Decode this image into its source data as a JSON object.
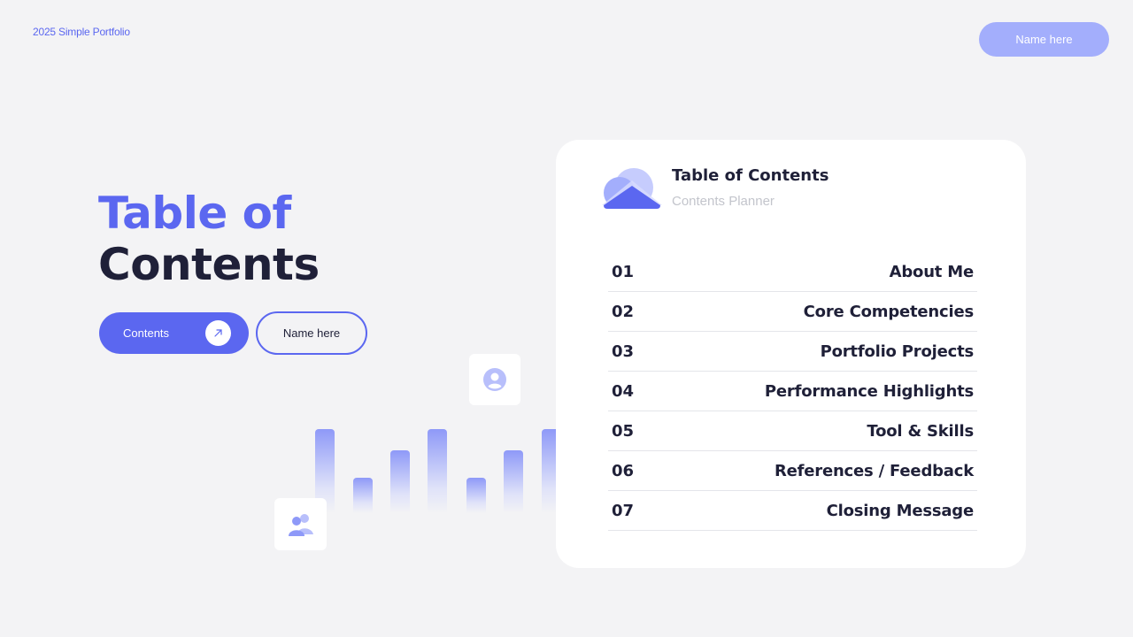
{
  "header": {
    "brand": "2025 Simple  Portfolio",
    "name_pill": "Name here"
  },
  "hero": {
    "title_line1": "Table of",
    "title_line2": "Contents",
    "contents_button": "Contents",
    "name_button": "Name  here"
  },
  "panel": {
    "title": "Table of Contents",
    "subtitle": "Contents Planner",
    "items": [
      {
        "num": "01",
        "label": "About Me"
      },
      {
        "num": "02",
        "label": "Core Competencies"
      },
      {
        "num": "03",
        "label": "Portfolio Projects"
      },
      {
        "num": "04",
        "label": "Performance Highlights"
      },
      {
        "num": "05",
        "label": "Tool & Skills"
      },
      {
        "num": "06",
        "label": "References / Feedback"
      },
      {
        "num": "07",
        "label": "Closing Message"
      }
    ]
  },
  "icons": {
    "arrow": "arrow-up-right-icon",
    "user": "user-icon",
    "group": "users-icon",
    "logo": "cloud-icon"
  },
  "colors": {
    "accent": "#5b67f0",
    "accent_light": "#a3aefc",
    "dark": "#1f2038",
    "background": "#f3f3f5"
  }
}
